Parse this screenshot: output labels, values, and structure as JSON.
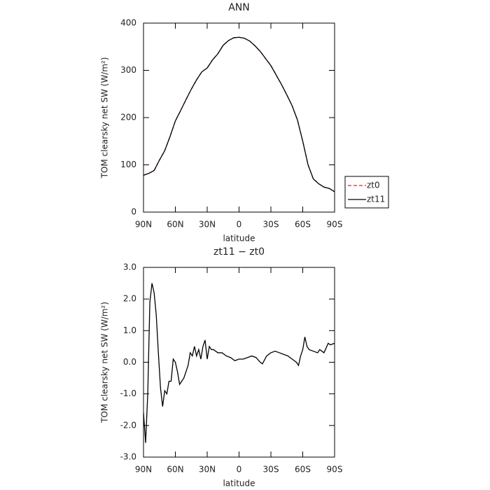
{
  "chart_data": [
    {
      "type": "line",
      "title": "ANN",
      "xlabel": "latitude",
      "ylabel": "TOM clearsky net SW (W/m²)",
      "x": [
        90,
        85,
        80,
        75,
        70,
        65,
        60,
        55,
        50,
        45,
        40,
        35,
        30,
        25,
        20,
        15,
        10,
        5,
        0,
        -5,
        -10,
        -15,
        -20,
        -25,
        -30,
        -35,
        -40,
        -45,
        -50,
        -55,
        -60,
        -65,
        -70,
        -75,
        -80,
        -85,
        -90
      ],
      "series": [
        {
          "name": "zt0",
          "color": "#d62728",
          "linestyle": "dashed",
          "values": [
            78,
            82,
            88,
            110,
            130,
            160,
            193,
            215,
            238,
            260,
            280,
            297,
            305,
            322,
            335,
            353,
            363,
            369,
            370,
            368,
            362,
            352,
            340,
            325,
            310,
            290,
            270,
            248,
            225,
            195,
            150,
            100,
            70,
            60,
            53,
            50,
            43
          ]
        },
        {
          "name": "zt11",
          "color": "#000000",
          "linestyle": "solid",
          "values": [
            78,
            82,
            88,
            110,
            130,
            160,
            193,
            215,
            238,
            260,
            280,
            297,
            305,
            322,
            335,
            353,
            363,
            369,
            370,
            368,
            362,
            352,
            340,
            325,
            310,
            290,
            270,
            248,
            225,
            195,
            150,
            100,
            70,
            60,
            53,
            50,
            43
          ]
        }
      ],
      "xlim": [
        90,
        -90
      ],
      "xticks": [
        {
          "value": 90,
          "label": "90N"
        },
        {
          "value": 60,
          "label": "60N"
        },
        {
          "value": 30,
          "label": "30N"
        },
        {
          "value": 0,
          "label": "0"
        },
        {
          "value": -30,
          "label": "30S"
        },
        {
          "value": -60,
          "label": "60S"
        },
        {
          "value": -90,
          "label": "90S"
        }
      ],
      "ylim": [
        0,
        400
      ],
      "yticks": [
        0,
        100,
        200,
        300,
        400
      ],
      "legend": "right"
    },
    {
      "type": "line",
      "title": "zt11 − zt0",
      "xlabel": "latitude",
      "ylabel": "TOM clearsky net SW (W/m²)",
      "x": [
        90,
        88,
        86,
        84,
        82,
        80,
        78,
        76,
        74,
        72,
        70,
        68,
        66,
        64,
        62,
        60,
        58,
        56,
        54,
        52,
        50,
        48,
        46,
        44,
        42,
        40,
        38,
        36,
        34,
        32,
        30,
        28,
        26,
        24,
        20,
        16,
        12,
        8,
        4,
        0,
        -4,
        -8,
        -12,
        -16,
        -20,
        -22,
        -26,
        -30,
        -34,
        -38,
        -42,
        -46,
        -50,
        -54,
        -56,
        -58,
        -60,
        -62,
        -64,
        -66,
        -70,
        -74,
        -76,
        -80,
        -84,
        -86,
        -90
      ],
      "series": [
        {
          "name": "zt11 − zt0",
          "color": "#000000",
          "linestyle": "solid",
          "values": [
            -1.6,
            -2.55,
            -1.0,
            1.9,
            2.5,
            2.2,
            1.5,
            0.3,
            -0.8,
            -1.4,
            -0.9,
            -1.0,
            -0.6,
            -0.6,
            0.1,
            0.0,
            -0.3,
            -0.7,
            -0.6,
            -0.5,
            -0.3,
            -0.1,
            0.3,
            0.2,
            0.5,
            0.2,
            0.4,
            0.1,
            0.5,
            0.7,
            0.1,
            0.5,
            0.4,
            0.4,
            0.3,
            0.3,
            0.2,
            0.15,
            0.05,
            0.1,
            0.1,
            0.15,
            0.2,
            0.15,
            0.0,
            -0.05,
            0.2,
            0.3,
            0.35,
            0.3,
            0.25,
            0.2,
            0.1,
            0.0,
            -0.1,
            0.2,
            0.4,
            0.8,
            0.5,
            0.4,
            0.35,
            0.3,
            0.4,
            0.3,
            0.6,
            0.55,
            0.6
          ]
        }
      ],
      "xlim": [
        90,
        -90
      ],
      "xticks": [
        {
          "value": 90,
          "label": "90N"
        },
        {
          "value": 60,
          "label": "60N"
        },
        {
          "value": 30,
          "label": "30N"
        },
        {
          "value": 0,
          "label": "0"
        },
        {
          "value": -30,
          "label": "30S"
        },
        {
          "value": -60,
          "label": "60S"
        },
        {
          "value": -90,
          "label": "90S"
        }
      ],
      "ylim": [
        -3,
        3
      ],
      "yticks": [
        {
          "value": -3,
          "label": "-3.0"
        },
        {
          "value": -2,
          "label": "-2.0"
        },
        {
          "value": -1,
          "label": "-1.0"
        },
        {
          "value": 0,
          "label": "0.0"
        },
        {
          "value": 1,
          "label": "1.0"
        },
        {
          "value": 2,
          "label": "2.0"
        },
        {
          "value": 3,
          "label": "3.0"
        }
      ]
    }
  ]
}
